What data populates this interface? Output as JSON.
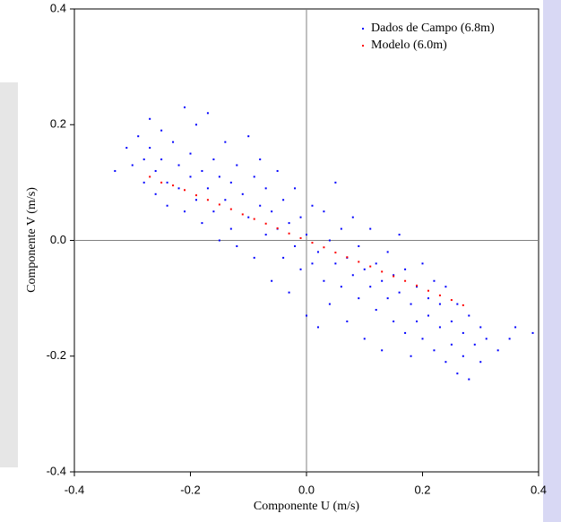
{
  "chart_data": {
    "type": "scatter",
    "x_label": "Componente U (m/s)",
    "y_label": "Componente V (m/s)",
    "xlim": [
      -0.4,
      0.4
    ],
    "ylim": [
      -0.4,
      0.4
    ],
    "xticks": [
      -0.4,
      -0.2,
      {
        "value": 0,
        "label": "0.0"
      },
      0.2,
      0.4
    ],
    "yticks": [
      -0.4,
      -0.2,
      {
        "value": 0,
        "label": "0.0"
      },
      0.2,
      0.4
    ],
    "legend": "top-right",
    "series": [
      {
        "name": "Dados de Campo (6.8m)",
        "color": "#0000ff",
        "x": [
          -0.33,
          -0.31,
          -0.3,
          -0.29,
          -0.28,
          -0.28,
          -0.27,
          -0.27,
          -0.26,
          -0.26,
          -0.25,
          -0.25,
          -0.24,
          -0.24,
          -0.23,
          -0.22,
          -0.22,
          -0.21,
          -0.21,
          -0.2,
          -0.2,
          -0.19,
          -0.19,
          -0.18,
          -0.18,
          -0.17,
          -0.17,
          -0.16,
          -0.16,
          -0.15,
          -0.15,
          -0.14,
          -0.14,
          -0.13,
          -0.13,
          -0.12,
          -0.12,
          -0.11,
          -0.1,
          -0.1,
          -0.09,
          -0.09,
          -0.08,
          -0.08,
          -0.07,
          -0.07,
          -0.06,
          -0.06,
          -0.05,
          -0.05,
          -0.04,
          -0.04,
          -0.03,
          -0.03,
          -0.02,
          -0.02,
          -0.01,
          -0.01,
          0.0,
          0.0,
          0.01,
          0.01,
          0.02,
          0.02,
          0.03,
          0.03,
          0.04,
          0.04,
          0.05,
          0.05,
          0.06,
          0.06,
          0.07,
          0.07,
          0.08,
          0.08,
          0.09,
          0.09,
          0.1,
          0.1,
          0.11,
          0.11,
          0.12,
          0.12,
          0.13,
          0.13,
          0.14,
          0.14,
          0.15,
          0.15,
          0.16,
          0.16,
          0.17,
          0.17,
          0.18,
          0.18,
          0.19,
          0.19,
          0.2,
          0.2,
          0.21,
          0.21,
          0.22,
          0.22,
          0.23,
          0.23,
          0.24,
          0.24,
          0.25,
          0.25,
          0.26,
          0.26,
          0.27,
          0.27,
          0.28,
          0.28,
          0.29,
          0.3,
          0.3,
          0.31,
          0.33,
          0.35,
          0.36,
          0.39
        ],
        "values": [
          0.12,
          0.16,
          0.13,
          0.18,
          0.14,
          0.1,
          0.21,
          0.16,
          0.12,
          0.08,
          0.19,
          0.14,
          0.1,
          0.06,
          0.17,
          0.13,
          0.09,
          0.23,
          0.05,
          0.15,
          0.11,
          0.2,
          0.07,
          0.12,
          0.03,
          0.22,
          0.09,
          0.14,
          0.05,
          0.11,
          0.0,
          0.17,
          0.07,
          0.1,
          0.02,
          0.13,
          -0.01,
          0.08,
          0.18,
          0.04,
          0.11,
          -0.03,
          0.06,
          0.14,
          0.01,
          0.09,
          -0.07,
          0.05,
          0.12,
          0.02,
          -0.03,
          0.07,
          0.03,
          -0.09,
          0.09,
          -0.01,
          0.04,
          -0.05,
          0.01,
          -0.13,
          0.06,
          -0.04,
          -0.02,
          -0.15,
          0.05,
          -0.07,
          0.0,
          -0.11,
          0.1,
          -0.04,
          -0.08,
          0.02,
          -0.14,
          -0.03,
          -0.06,
          0.04,
          -0.1,
          -0.01,
          -0.05,
          -0.17,
          -0.08,
          0.02,
          -0.12,
          -0.04,
          -0.07,
          -0.19,
          -0.02,
          -0.1,
          -0.14,
          -0.06,
          -0.09,
          0.01,
          -0.16,
          -0.05,
          -0.11,
          -0.2,
          -0.08,
          -0.14,
          -0.04,
          -0.17,
          -0.1,
          -0.13,
          -0.07,
          -0.19,
          -0.15,
          -0.11,
          -0.21,
          -0.08,
          -0.14,
          -0.18,
          -0.11,
          -0.23,
          -0.16,
          -0.2,
          -0.13,
          -0.24,
          -0.18,
          -0.15,
          -0.21,
          -0.17,
          -0.19,
          -0.17,
          -0.15,
          -0.16
        ]
      },
      {
        "name": "Modelo (6.0m)",
        "color": "#ff0000",
        "x": [
          -0.27,
          -0.25,
          -0.23,
          -0.21,
          -0.19,
          -0.17,
          -0.15,
          -0.13,
          -0.11,
          -0.09,
          -0.07,
          -0.05,
          -0.03,
          -0.01,
          0.01,
          0.03,
          0.05,
          0.07,
          0.09,
          0.11,
          0.13,
          0.15,
          0.17,
          0.19,
          0.21,
          0.23,
          0.25,
          0.27
        ],
        "values": [
          0.11,
          0.1,
          0.095,
          0.087,
          0.078,
          0.07,
          0.062,
          0.054,
          0.045,
          0.037,
          0.029,
          0.021,
          0.012,
          0.004,
          -0.004,
          -0.012,
          -0.021,
          -0.029,
          -0.037,
          -0.045,
          -0.054,
          -0.062,
          -0.07,
          -0.078,
          -0.087,
          -0.095,
          -0.103,
          -0.112
        ]
      }
    ]
  }
}
